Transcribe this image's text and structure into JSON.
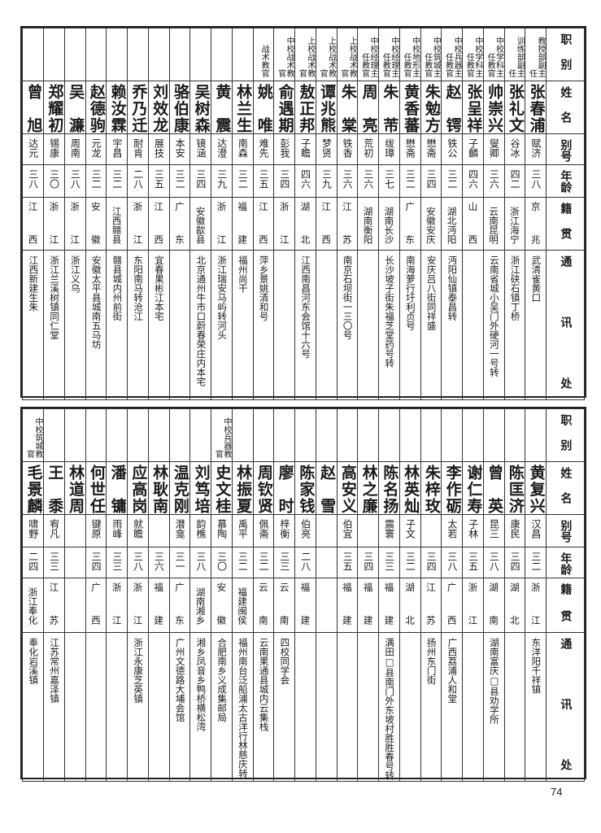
{
  "headers": {
    "title": "职别",
    "name": "姓名",
    "alias": "别号",
    "age": "年龄",
    "native": "籍贯",
    "address": "通讯处"
  },
  "top_rows": [
    {
      "title": "教授部副主任",
      "name": "张春浦",
      "alias": "赋济",
      "age": "三八",
      "native": "京兆",
      "address": "武清雀黄口"
    },
    {
      "title": "训练部副主任",
      "name": "张礼文",
      "alias": "谷冰",
      "age": "四二",
      "native": "浙江海宁",
      "address": "浙江硖石镇丁桥"
    },
    {
      "title": "中校学科主任教官",
      "name": "帅崇兴",
      "alias": "燮卿",
      "age": "三六",
      "native": "云南昆明",
      "address": "云南省城小吴门外硬河一号转"
    },
    {
      "title": "中校学科主任教官",
      "name": "张呈祥",
      "alias": "子麟",
      "age": "四六",
      "native": "山西",
      "address": ""
    },
    {
      "title": "中校兵器主任教官",
      "name": "赵锷",
      "alias": "铁公",
      "age": "三二",
      "native": "湖北沔阳",
      "address": "沔阳仙镇泰昌转"
    },
    {
      "title": "中校筑城主任教官",
      "name": "朱勉方",
      "alias": "懋斋",
      "age": "三四",
      "native": "安徽安庆",
      "address": "安庆吕八街同祥盛"
    },
    {
      "title": "中校地形主任教官",
      "name": "黄香蕃",
      "alias": "懋斋",
      "age": "三二",
      "native": "广东",
      "address": "南海萝行圩利贞号"
    },
    {
      "title": "中校经理主任教官",
      "name": "朱芾",
      "alias": "绂璋",
      "age": "三七",
      "native": "湖南长沙",
      "address": "长沙坡子街朱福芝堂药号转"
    },
    {
      "title": "中校经理主任教官",
      "name": "周亮",
      "alias": "荒初",
      "age": "三六",
      "native": "湖南衡阳",
      "address": ""
    },
    {
      "title": "上校战术教官",
      "name": "朱棠",
      "alias": "铁香",
      "age": "三六",
      "native": "江苏",
      "address": "南京石坝街一三〇号"
    },
    {
      "title": "上校战术教官",
      "name": "谭兆熊",
      "alias": "梦贤",
      "age": "三九",
      "native": "江西",
      "address": ""
    },
    {
      "title": "上校战术教官",
      "name": "敖正邦",
      "alias": "子瞻",
      "age": "四六",
      "native": "湖北",
      "address": "江西南昌河东会馆十六号"
    },
    {
      "title": "中校战术教官",
      "name": "俞遇期",
      "alias": "彭我",
      "age": "三四",
      "native": "浙江",
      "address": ""
    },
    {
      "title": "战术教官",
      "name": "姚唯",
      "alias": "难先",
      "age": "三五",
      "native": "江西",
      "address": "萍乡景姚清和号"
    },
    {
      "title": "",
      "name": "林兰生",
      "alias": "南森",
      "age": "三二",
      "native": "福建",
      "address": "福州尚干"
    },
    {
      "title": "",
      "name": "黄震",
      "alias": "达澄",
      "age": "三九",
      "native": "浙江",
      "address": "浙江瑞安马屿转河头"
    },
    {
      "title": "",
      "name": "吴树森",
      "alias": "镜涵",
      "age": "三四",
      "native": "安徽歙县",
      "address": "北京通州牛市口蔚春荣庄内本宅"
    },
    {
      "title": "",
      "name": "骆伯康",
      "alias": "本安",
      "age": "三二",
      "native": "广东",
      "address": ""
    },
    {
      "title": "",
      "name": "刘效龙",
      "alias": "展技",
      "age": "三五",
      "native": "江西",
      "address": "宜春果彬江本宅"
    },
    {
      "title": "",
      "name": "乔乃迁",
      "alias": "耐肯",
      "age": "二八",
      "native": "浙江",
      "address": "东阳南马转沧江"
    },
    {
      "title": "",
      "name": "赖汝霖",
      "alias": "宇昌",
      "age": "三二",
      "native": "江西赣县",
      "address": "赣县城内州前街"
    },
    {
      "title": "",
      "name": "赵德驹",
      "alias": "元龙",
      "age": "三二",
      "native": "安徽",
      "address": "安徽太平县城南五马坊"
    },
    {
      "title": "",
      "name": "吴濂",
      "alias": "周南",
      "age": "三八",
      "native": "浙江",
      "address": "浙江义乌"
    },
    {
      "title": "",
      "name": "郑耀初",
      "alias": "锡康",
      "age": "三〇",
      "native": "浙江",
      "address": "浙江兰溪树镇同仁堂"
    },
    {
      "title": "",
      "name": "曾旭",
      "alias": "达元",
      "age": "三八",
      "native": "江西",
      "address": "江西新建生朱"
    }
  ],
  "bottom_rows": [
    {
      "title": "",
      "name": "黄复兴",
      "alias": "汉昌",
      "age": "三二",
      "native": "浙江",
      "address": "东洋阳千祥镇"
    },
    {
      "title": "",
      "name": "陈匡济",
      "alias": "康民",
      "age": "三四",
      "native": "湖北",
      "address": ""
    },
    {
      "title": "",
      "name": "曾英",
      "alias": "昆三",
      "age": "三八",
      "native": "湖南",
      "address": "湖南富庆□县劝学所"
    },
    {
      "title": "",
      "name": "谢仁寿",
      "alias": "子林",
      "age": "三五",
      "native": "浙江",
      "address": ""
    },
    {
      "title": "",
      "name": "李作砺",
      "alias": "太若",
      "age": "三八",
      "native": "广西",
      "address": "广西荔浦人和堂"
    },
    {
      "title": "",
      "name": "朱梓玫",
      "alias": "",
      "age": "三四",
      "native": "江苏",
      "address": "扬州东门街"
    },
    {
      "title": "",
      "name": "林英灿",
      "alias": "子文",
      "age": "三二",
      "native": "湖北",
      "address": ""
    },
    {
      "title": "",
      "name": "陈名扬",
      "alias": "震寰",
      "age": "三三",
      "native": "福建",
      "address": "满田□县南门外东坡村胜胜春号转"
    },
    {
      "title": "",
      "name": "林之廉",
      "alias": "",
      "age": "三四",
      "native": "福建",
      "address": ""
    },
    {
      "title": "",
      "name": "高安义",
      "alias": "伯宜",
      "age": "三五",
      "native": "福建",
      "address": ""
    },
    {
      "title": "",
      "name": "赵雪",
      "alias": "",
      "age": "",
      "native": "",
      "address": ""
    },
    {
      "title": "",
      "name": "陈家钱",
      "alias": "伯亮",
      "age": "二八",
      "native": "福建",
      "address": ""
    },
    {
      "title": "",
      "name": "廖时",
      "alias": "梓衡",
      "age": "三三",
      "native": "云南",
      "address": "四校同学会"
    },
    {
      "title": "",
      "name": "周钦贤",
      "alias": "佩斋",
      "age": "三二",
      "native": "云南",
      "address": "云南果通县城内云集栈"
    },
    {
      "title": "",
      "name": "林振夏",
      "alias": "禹平",
      "age": "三二",
      "native": "福建闽侯",
      "address": "福州南台泛船浦太古洋行林慈庆转"
    },
    {
      "title": "中校兵器教官",
      "name": "史文桂",
      "alias": "慕陶",
      "age": "三〇",
      "native": "安徽",
      "address": "合肥南乡义成集邮局"
    },
    {
      "title": "",
      "name": "刘笃培",
      "alias": "韵樵",
      "age": "三八",
      "native": "湖南湘乡",
      "address": "湘乡凤音乡鸭桥横松湾"
    },
    {
      "title": "",
      "name": "温克刚",
      "alias": "潜龛",
      "age": "三一",
      "native": "广东",
      "address": "广州文德路大埔会馆"
    },
    {
      "title": "",
      "name": "林耿南",
      "alias": "",
      "age": "三六",
      "native": "福建",
      "address": ""
    },
    {
      "title": "",
      "name": "应高岗",
      "alias": "就瞻",
      "age": "三八",
      "native": "浙江",
      "address": "浙江永康芝英镇"
    },
    {
      "title": "",
      "name": "潘镛",
      "alias": "雨峰",
      "age": "三三",
      "native": "浙江",
      "address": ""
    },
    {
      "title": "",
      "name": "何世任",
      "alias": "键原",
      "age": "三四",
      "native": "广西",
      "address": ""
    },
    {
      "title": "",
      "name": "林道周",
      "alias": "",
      "age": "",
      "native": "",
      "address": ""
    },
    {
      "title": "",
      "name": "王黍",
      "alias": "宥凡",
      "age": "三三",
      "native": "江苏",
      "address": "江苏常州嘉泽镇"
    },
    {
      "title": "中校筑城教官",
      "name": "毛景麟",
      "alias": "啸野",
      "age": "二四",
      "native": "浙江奉化",
      "address": "奉化岩溪镇"
    }
  ],
  "page_number": "74"
}
